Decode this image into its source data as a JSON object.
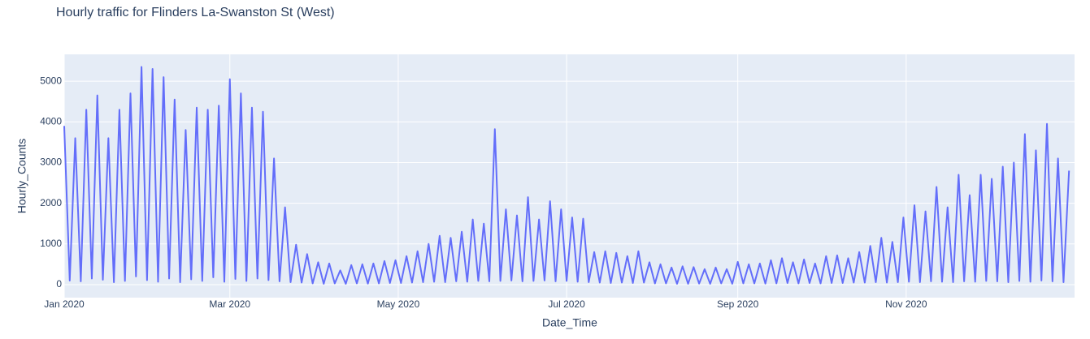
{
  "chart_data": {
    "type": "line",
    "title": "Hourly traffic for Flinders La-Swanston St (West)",
    "x_label": "Date_Time",
    "y_label": "Hourly_Counts",
    "xlim": [
      0,
      366
    ],
    "ylim": [
      -320,
      5660
    ],
    "xticks": [
      {
        "value": 0,
        "label": "Jan 2020"
      },
      {
        "value": 60,
        "label": "Mar 2020"
      },
      {
        "value": 121,
        "label": "May 2020"
      },
      {
        "value": 182,
        "label": "Jul 2020"
      },
      {
        "value": 244,
        "label": "Sep 2020"
      },
      {
        "value": 305,
        "label": "Nov 2020"
      }
    ],
    "yticks": [
      0,
      1000,
      2000,
      3000,
      4000,
      5000
    ],
    "grid": true,
    "x": [
      0,
      2,
      4,
      6,
      8,
      10,
      12,
      14,
      16,
      18,
      20,
      22,
      24,
      26,
      28,
      30,
      32,
      34,
      36,
      38,
      40,
      42,
      44,
      46,
      48,
      50,
      52,
      54,
      56,
      58,
      60,
      62,
      64,
      66,
      68,
      70,
      72,
      74,
      76,
      78,
      80,
      82,
      84,
      86,
      88,
      90,
      92,
      94,
      96,
      98,
      100,
      102,
      104,
      106,
      108,
      110,
      112,
      114,
      116,
      118,
      120,
      122,
      124,
      126,
      128,
      130,
      132,
      134,
      136,
      138,
      140,
      142,
      144,
      146,
      148,
      150,
      152,
      154,
      156,
      158,
      160,
      162,
      164,
      166,
      168,
      170,
      172,
      174,
      176,
      178,
      180,
      182,
      184,
      186,
      188,
      190,
      192,
      194,
      196,
      198,
      200,
      202,
      204,
      206,
      208,
      210,
      212,
      214,
      216,
      218,
      220,
      222,
      224,
      226,
      228,
      230,
      232,
      234,
      236,
      238,
      240,
      242,
      244,
      246,
      248,
      250,
      252,
      254,
      256,
      258,
      260,
      262,
      264,
      266,
      268,
      270,
      272,
      274,
      276,
      278,
      280,
      282,
      284,
      286,
      288,
      290,
      292,
      294,
      296,
      298,
      300,
      302,
      304,
      306,
      308,
      310,
      312,
      314,
      316,
      318,
      320,
      322,
      324,
      326,
      328,
      330,
      332,
      334,
      336,
      338,
      340,
      342,
      344,
      346,
      348,
      350,
      352,
      354,
      356,
      358,
      360,
      362,
      364
    ],
    "series": [
      {
        "name": "Hourly_Counts",
        "color": "#636efa",
        "values": [
          3900,
          100,
          3600,
          80,
          4300,
          150,
          4650,
          120,
          3600,
          60,
          4300,
          90,
          4700,
          200,
          5350,
          110,
          5300,
          70,
          5100,
          150,
          4550,
          60,
          3800,
          130,
          4350,
          90,
          4300,
          180,
          4400,
          70,
          5050,
          140,
          4700,
          90,
          4350,
          150,
          4250,
          110,
          3100,
          80,
          1900,
          60,
          980,
          50,
          750,
          30,
          550,
          20,
          520,
          30,
          350,
          20,
          480,
          30,
          500,
          25,
          520,
          30,
          580,
          40,
          600,
          40,
          700,
          50,
          820,
          60,
          1000,
          70,
          1200,
          60,
          1150,
          80,
          1300,
          70,
          1600,
          90,
          1500,
          80,
          3820,
          90,
          1850,
          100,
          1700,
          80,
          2150,
          90,
          1600,
          100,
          2050,
          80,
          1850,
          90,
          1650,
          70,
          1620,
          60,
          800,
          50,
          820,
          40,
          780,
          50,
          700,
          40,
          820,
          50,
          550,
          30,
          500,
          30,
          420,
          20,
          450,
          20,
          430,
          25,
          380,
          20,
          420,
          30,
          380,
          20,
          560,
          30,
          500,
          30,
          520,
          25,
          600,
          30,
          650,
          40,
          550,
          30,
          620,
          40,
          520,
          30,
          700,
          40,
          720,
          40,
          650,
          50,
          800,
          50,
          950,
          60,
          1150,
          50,
          1050,
          60,
          1650,
          70,
          1950,
          60,
          1800,
          80,
          2400,
          70,
          1900,
          60,
          2700,
          80,
          2200,
          70,
          2700,
          90,
          2600,
          80,
          2900,
          60,
          3000,
          90,
          3700,
          70,
          3300,
          100,
          3950,
          80,
          3100,
          60,
          2800
        ]
      }
    ]
  }
}
